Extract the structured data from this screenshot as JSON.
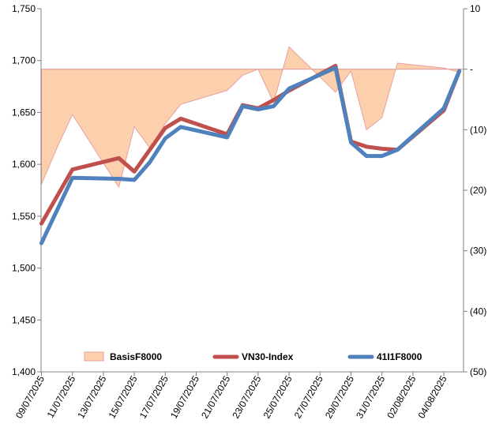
{
  "chart_data": {
    "type": "line",
    "title": "",
    "xlabel": "",
    "ylabel": "",
    "ylim": [
      1400,
      1750
    ],
    "y2lim": [
      -50,
      10
    ],
    "y_ticks": [
      "1,400",
      "1,450",
      "1,500",
      "1,550",
      "1,600",
      "1,650",
      "1,700",
      "1,750"
    ],
    "y2_ticks": [
      "(50)",
      "(40)",
      "(30)",
      "(20)",
      "(10)",
      "-",
      "10"
    ],
    "x_ticks": [
      "09/07/2025",
      "11/07/2025",
      "13/07/2025",
      "15/07/2025",
      "17/07/2025",
      "19/07/2025",
      "21/07/2025",
      "23/07/2025",
      "25/07/2025",
      "27/07/2025",
      "29/07/2025",
      "31/07/2025",
      "02/08/2025",
      "04/08/2025"
    ],
    "x_start": "09/07/2025",
    "grid": false,
    "legend_position": "bottom",
    "basis_series": {
      "name": "BasisF8000",
      "axis": "right",
      "type": "area",
      "x": [
        "09/07/2025",
        "10/07/2025",
        "11/07/2025",
        "14/07/2025",
        "15/07/2025",
        "16/07/2025",
        "17/07/2025",
        "18/07/2025",
        "21/07/2025",
        "22/07/2025",
        "23/07/2025",
        "24/07/2025",
        "25/07/2025",
        "28/07/2025",
        "29/07/2025",
        "30/07/2025",
        "31/07/2025",
        "01/08/2025",
        "04/08/2025",
        "05/08/2025"
      ],
      "values": [
        -19,
        -13,
        -7.5,
        -19.5,
        -9.5,
        -13,
        -9,
        -5.8,
        -3.5,
        -1,
        0,
        -5.5,
        3.7,
        -3.8,
        -0.3,
        -10,
        -8,
        1,
        0.2,
        -0.5
      ]
    },
    "series": [
      {
        "name": "VN30-Index",
        "axis": "left",
        "color": "#c0504d",
        "x": [
          "09/07/2025",
          "11/07/2025",
          "14/07/2025",
          "15/07/2025",
          "16/07/2025",
          "17/07/2025",
          "18/07/2025",
          "21/07/2025",
          "22/07/2025",
          "23/07/2025",
          "24/07/2025",
          "25/07/2025",
          "28/07/2025",
          "29/07/2025",
          "30/07/2025",
          "31/07/2025",
          "01/08/2025",
          "04/08/2025",
          "05/08/2025"
        ],
        "values": [
          1543,
          1595,
          1606,
          1593,
          1614,
          1635,
          1644,
          1629,
          1657,
          1654,
          1662,
          1671,
          1695,
          1622,
          1617,
          1615,
          1614,
          1652,
          1690
        ]
      },
      {
        "name": "41I1F8000",
        "axis": "left",
        "color": "#4f81bd",
        "x": [
          "09/07/2025",
          "11/07/2025",
          "14/07/2025",
          "15/07/2025",
          "16/07/2025",
          "17/07/2025",
          "18/07/2025",
          "21/07/2025",
          "22/07/2025",
          "23/07/2025",
          "24/07/2025",
          "25/07/2025",
          "28/07/2025",
          "29/07/2025",
          "30/07/2025",
          "31/07/2025",
          "01/08/2025",
          "04/08/2025",
          "05/08/2025"
        ],
        "values": [
          1524,
          1587,
          1586,
          1585,
          1602,
          1625,
          1636,
          1626,
          1656,
          1653,
          1656,
          1673,
          1693,
          1621,
          1608,
          1608,
          1614,
          1654,
          1690
        ]
      }
    ]
  },
  "colors": {
    "basis_fill": "#fcd0ac",
    "basis_stroke": "#e6a0a0",
    "vn30": "#c0504d",
    "future": "#4f81bd",
    "axis": "#808080"
  }
}
